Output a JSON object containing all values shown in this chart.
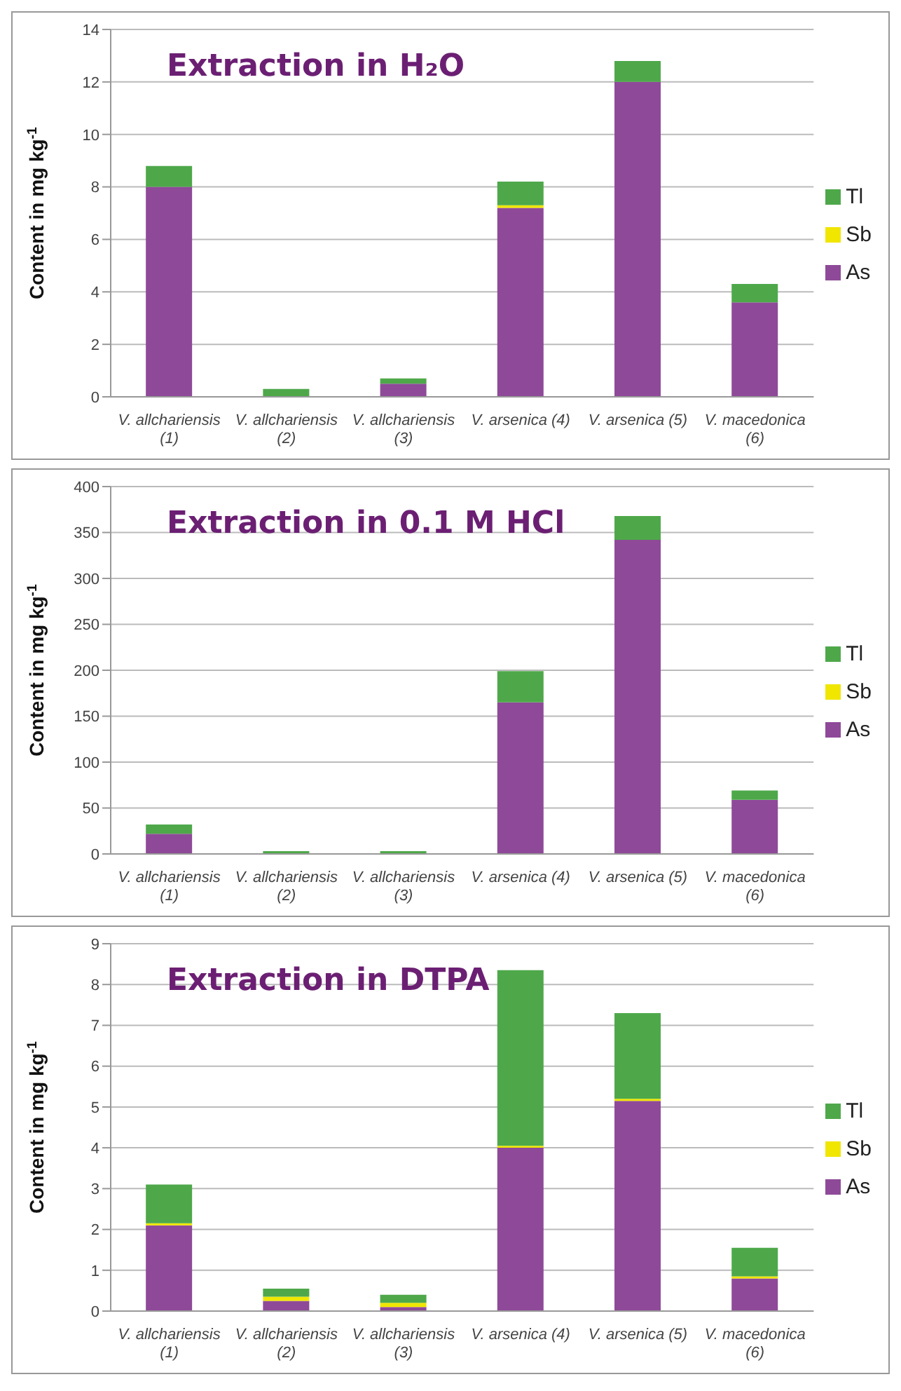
{
  "chart_data": [
    {
      "type": "bar",
      "title": "Extraction in H₂O",
      "ylabel": "Content in mg kg$^{-1}$",
      "categories": [
        "V. allchariensis (1)",
        "V. allchariensis (2)",
        "V. allchariensis (3)",
        "V. arsenica (4)",
        "V. arsenica (5)",
        "V. macedonica (6)"
      ],
      "stacked": true,
      "series": [
        {
          "name": "As",
          "color": "#8e4a98",
          "values": [
            8.0,
            0,
            0.5,
            7.2,
            12.0,
            3.6
          ]
        },
        {
          "name": "Sb",
          "color": "#f0e600",
          "values": [
            0,
            0,
            0,
            0.1,
            0,
            0
          ]
        },
        {
          "name": "Tl",
          "color": "#4ea84a",
          "values": [
            0.8,
            0.3,
            0.2,
            0.9,
            0.8,
            0.7
          ]
        }
      ],
      "ylim": [
        0,
        14
      ],
      "yticks": [
        0,
        2,
        4,
        6,
        8,
        10,
        12,
        14
      ],
      "grid": "y",
      "legend": "right"
    },
    {
      "type": "bar",
      "title": "Extraction in 0.1 M HCl",
      "ylabel": "Content in mg kg$^{-1}$",
      "categories": [
        "V. allchariensis (1)",
        "V. allchariensis (2)",
        "V. allchariensis (3)",
        "V. arsenica (4)",
        "V. arsenica (5)",
        "V. macedonica (6)"
      ],
      "stacked": true,
      "series": [
        {
          "name": "As",
          "color": "#8e4a98",
          "values": [
            22,
            0,
            0,
            165,
            342,
            59
          ]
        },
        {
          "name": "Sb",
          "color": "#f0e600",
          "values": [
            0,
            0,
            0,
            0,
            0,
            0
          ]
        },
        {
          "name": "Tl",
          "color": "#4ea84a",
          "values": [
            10,
            3,
            3,
            34,
            26,
            10
          ]
        }
      ],
      "ylim": [
        0,
        400
      ],
      "yticks": [
        0,
        50,
        100,
        150,
        200,
        250,
        300,
        350,
        400
      ],
      "grid": "y",
      "legend": "right"
    },
    {
      "type": "bar",
      "title": "Extraction in DTPA",
      "ylabel": "Content in mg kg$^{-1}$",
      "categories": [
        "V. allchariensis (1)",
        "V. allchariensis (2)",
        "V. allchariensis (3)",
        "V. arsenica (4)",
        "V. arsenica (5)",
        "V. macedonica (6)"
      ],
      "stacked": true,
      "series": [
        {
          "name": "As",
          "color": "#8e4a98",
          "values": [
            2.1,
            0.25,
            0.1,
            4.0,
            5.15,
            0.8
          ]
        },
        {
          "name": "Sb",
          "color": "#f0e600",
          "values": [
            0.05,
            0.1,
            0.1,
            0.05,
            0.05,
            0.05
          ]
        },
        {
          "name": "Tl",
          "color": "#4ea84a",
          "values": [
            0.95,
            0.2,
            0.2,
            4.3,
            2.1,
            0.7
          ]
        }
      ],
      "ylim": [
        0,
        9
      ],
      "yticks": [
        0,
        1,
        2,
        3,
        4,
        5,
        6,
        7,
        8,
        9
      ],
      "grid": "y",
      "legend": "right"
    }
  ]
}
